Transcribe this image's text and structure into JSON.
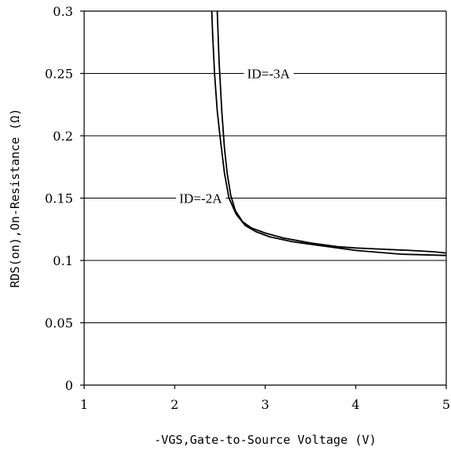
{
  "chart_data": {
    "type": "line",
    "xlabel": "-VGS,Gate-to-Source Voltage (V)",
    "ylabel": "RDS(on),On-Resistance (Ω)",
    "xlim": [
      1,
      5
    ],
    "ylim": [
      0,
      0.3
    ],
    "xticks": [
      "1",
      "2",
      "3",
      "4",
      "5"
    ],
    "yticks": [
      "0",
      "0.05",
      "0.1",
      "0.15",
      "0.2",
      "0.25",
      "0.3"
    ],
    "grid": "horizontal",
    "series": [
      {
        "name": "ID=-3A",
        "x": [
          2.47,
          2.49,
          2.52,
          2.55,
          2.58,
          2.62,
          2.67,
          2.75,
          2.85,
          3.0,
          3.2,
          3.5,
          3.8,
          4.0,
          4.3,
          4.6,
          4.85,
          5.0
        ],
        "y": [
          0.3,
          0.26,
          0.22,
          0.19,
          0.17,
          0.152,
          0.14,
          0.131,
          0.126,
          0.122,
          0.118,
          0.114,
          0.111,
          0.11,
          0.109,
          0.108,
          0.107,
          0.106
        ]
      },
      {
        "name": "ID=-2A",
        "x": [
          2.41,
          2.42,
          2.44,
          2.47,
          2.5,
          2.55,
          2.6,
          2.68,
          2.78,
          2.9,
          3.05,
          3.3,
          3.7,
          4.0,
          4.5,
          5.0
        ],
        "y": [
          0.3,
          0.28,
          0.25,
          0.22,
          0.2,
          0.17,
          0.15,
          0.137,
          0.128,
          0.123,
          0.119,
          0.115,
          0.111,
          0.108,
          0.105,
          0.104
        ]
      }
    ],
    "annotations": [
      {
        "text": "ID=-3A",
        "x": 2.8,
        "y": 0.25
      },
      {
        "text": "ID=-2A",
        "x": 2.05,
        "y": 0.15
      }
    ]
  }
}
